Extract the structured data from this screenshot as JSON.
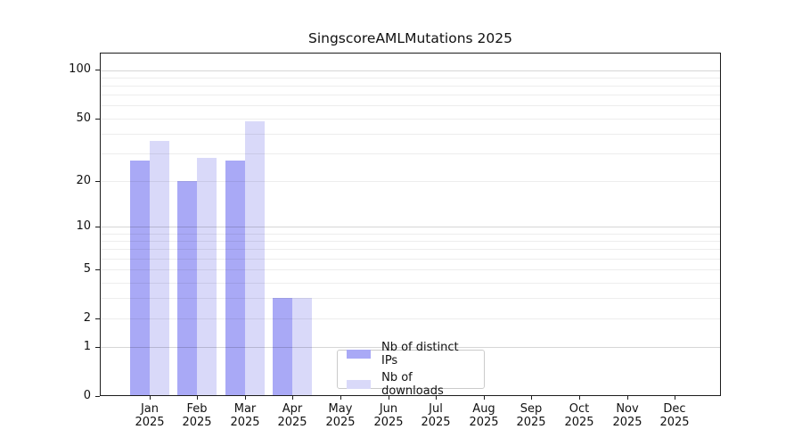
{
  "title": "SingscoreAMLMutations 2025",
  "chart_data": {
    "type": "bar",
    "title": "SingscoreAMLMutations 2025",
    "x_year": "2025",
    "categories": [
      "Jan",
      "Feb",
      "Mar",
      "Apr",
      "May",
      "Jun",
      "Jul",
      "Aug",
      "Sep",
      "Oct",
      "Nov",
      "Dec"
    ],
    "series": [
      {
        "name": "Nb of distinct IPs",
        "color": "#a9a9f6",
        "values": [
          27,
          20,
          27,
          3,
          0,
          0,
          0,
          0,
          0,
          0,
          0,
          0
        ]
      },
      {
        "name": "Nb of downloads",
        "color": "#d9d9f9",
        "values": [
          36,
          28,
          48,
          3,
          0,
          0,
          0,
          0,
          0,
          0,
          0,
          0
        ]
      }
    ],
    "y_scale": "log1p",
    "y_ticks": [
      0,
      1,
      2,
      5,
      10,
      20,
      50,
      100
    ],
    "y_grid_major": [
      1,
      10,
      100
    ],
    "y_grid_minor": [
      2,
      3,
      4,
      5,
      6,
      7,
      8,
      9,
      20,
      30,
      40,
      50,
      60,
      70,
      80,
      90
    ],
    "ylim": [
      0,
      126
    ],
    "grid": "horizontal",
    "legend_position": "lower-center",
    "colors": {
      "frame": "#1c1c1c",
      "grid_major": "#d5d5d5",
      "grid_minor": "#ededed",
      "legend_border": "#cbcbcb",
      "text": "#111111"
    }
  }
}
